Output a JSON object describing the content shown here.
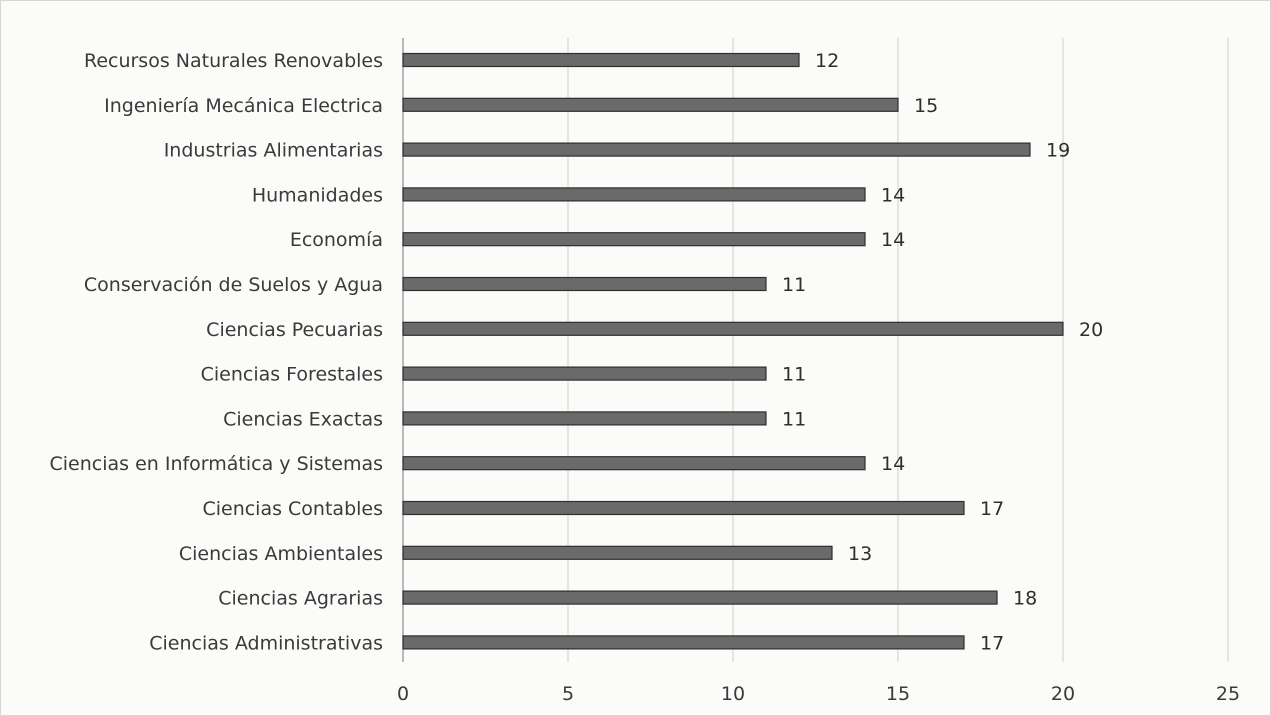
{
  "chart_data": {
    "type": "bar",
    "orientation": "horizontal",
    "categories": [
      "Recursos Naturales Renovables",
      "Ingeniería Mecánica Electrica",
      "Industrias Alimentarias",
      "Humanidades",
      "Economía",
      "Conservación de Suelos y Agua",
      "Ciencias Pecuarias",
      "Ciencias Forestales",
      "Ciencias Exactas",
      "Ciencias en Informática y Sistemas",
      "Ciencias Contables",
      "Ciencias Ambientales",
      "Ciencias Agrarias",
      "Ciencias Administrativas"
    ],
    "values": [
      12,
      15,
      19,
      14,
      14,
      11,
      20,
      11,
      11,
      14,
      17,
      13,
      18,
      17
    ],
    "xlim": [
      0,
      25
    ],
    "xticks": [
      "0",
      "5",
      "10",
      "15",
      "20",
      "25"
    ],
    "grid": true,
    "legend": "none",
    "bar_color": "#6a6a6a",
    "bar_edge_color": "#2f2f2f"
  }
}
